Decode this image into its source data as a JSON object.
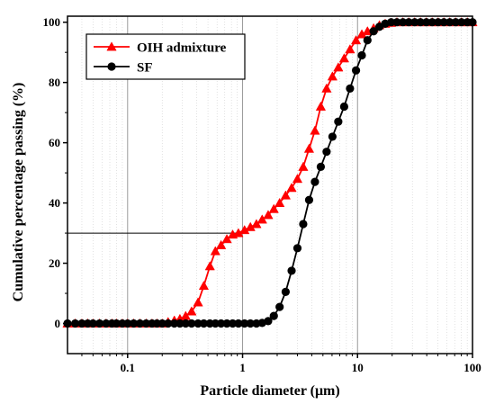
{
  "chart_data": {
    "type": "line",
    "xscale": "log",
    "xlim": [
      0.03,
      100
    ],
    "ylim": [
      -10,
      102
    ],
    "xlabel": "Particle diameter (μm)",
    "ylabel": "Cumulative percentage passing (%)",
    "x_ticks": [
      {
        "value": 0.1,
        "label": "0.1"
      },
      {
        "value": 1,
        "label": "1"
      },
      {
        "value": 10,
        "label": "10"
      },
      {
        "value": 100,
        "label": "100"
      }
    ],
    "y_ticks": [
      {
        "value": 0,
        "label": "0"
      },
      {
        "value": 20,
        "label": "20"
      },
      {
        "value": 40,
        "label": "40"
      },
      {
        "value": 60,
        "label": "60"
      },
      {
        "value": 80,
        "label": "80"
      },
      {
        "value": 100,
        "label": "100"
      }
    ],
    "grid": true,
    "grid_lines_x": [
      0.1,
      1,
      10
    ],
    "legend_position": "top-left",
    "annotation": {
      "type": "reference-lines",
      "x": 1,
      "y": 30
    },
    "series": [
      {
        "name": "OIH admixture",
        "color": "#ff0000",
        "marker": "triangle",
        "x": [
          0.03,
          0.035,
          0.04,
          0.045,
          0.05,
          0.057,
          0.065,
          0.073,
          0.08,
          0.09,
          0.1,
          0.113,
          0.128,
          0.145,
          0.163,
          0.18,
          0.2,
          0.225,
          0.255,
          0.285,
          0.32,
          0.36,
          0.41,
          0.46,
          0.52,
          0.58,
          0.65,
          0.73,
          0.82,
          0.92,
          1.04,
          1.17,
          1.32,
          1.48,
          1.67,
          1.87,
          2.1,
          2.37,
          2.67,
          3.0,
          3.37,
          3.79,
          4.26,
          4.79,
          5.38,
          6.05,
          6.8,
          7.65,
          8.6,
          9.7,
          10.9,
          12.2,
          13.8,
          15.5,
          17.4,
          19.6,
          22,
          24.8,
          27.9,
          31.4,
          35.3,
          39.7,
          44.6,
          50.2,
          56.4,
          63.4,
          71.3,
          80.2,
          90.2,
          100
        ],
        "y": [
          0,
          0,
          0,
          0,
          0,
          0,
          0,
          0,
          0,
          0,
          0,
          0,
          0,
          0,
          0,
          0,
          0,
          0.5,
          1,
          1.5,
          2.5,
          4,
          7,
          12.5,
          19,
          24,
          26,
          28,
          29.5,
          30,
          31,
          32,
          33,
          34.5,
          36,
          38,
          40,
          42.5,
          45,
          48,
          52,
          58,
          64,
          72,
          78,
          82,
          85,
          88,
          91,
          94,
          96,
          97,
          98,
          99,
          99.5,
          99.8,
          100,
          100,
          100,
          100,
          100,
          100,
          100,
          100,
          100,
          100,
          100,
          100,
          100,
          100
        ]
      },
      {
        "name": "SF",
        "color": "#000000",
        "marker": "circle",
        "x": [
          0.03,
          0.035,
          0.04,
          0.045,
          0.05,
          0.057,
          0.065,
          0.073,
          0.08,
          0.09,
          0.1,
          0.113,
          0.128,
          0.145,
          0.163,
          0.18,
          0.2,
          0.225,
          0.255,
          0.285,
          0.32,
          0.36,
          0.41,
          0.46,
          0.52,
          0.58,
          0.65,
          0.73,
          0.82,
          0.92,
          1.04,
          1.17,
          1.32,
          1.48,
          1.67,
          1.87,
          2.1,
          2.37,
          2.67,
          3.0,
          3.37,
          3.79,
          4.26,
          4.79,
          5.38,
          6.05,
          6.8,
          7.65,
          8.6,
          9.7,
          10.9,
          12.2,
          13.8,
          15.5,
          17.4,
          19.6,
          22,
          24.8,
          27.9,
          31.4,
          35.3,
          39.7,
          44.6,
          50.2,
          56.4,
          63.4,
          71.3,
          80.2,
          90.2,
          100
        ],
        "y": [
          0,
          0,
          0,
          0,
          0,
          0,
          0,
          0,
          0,
          0,
          0,
          0,
          0,
          0,
          0,
          0,
          0,
          0,
          0,
          0,
          0,
          0,
          0,
          0,
          0,
          0,
          0,
          0,
          0,
          0,
          0,
          0,
          0,
          0.2,
          0.8,
          2.5,
          5.5,
          10.5,
          17.5,
          25,
          33,
          41,
          47,
          52,
          57,
          62,
          67,
          72,
          78,
          84,
          89,
          94,
          97,
          98.5,
          99.5,
          100,
          100,
          100,
          100,
          100,
          100,
          100,
          100,
          100,
          100,
          100,
          100,
          100,
          100,
          100
        ]
      }
    ]
  }
}
